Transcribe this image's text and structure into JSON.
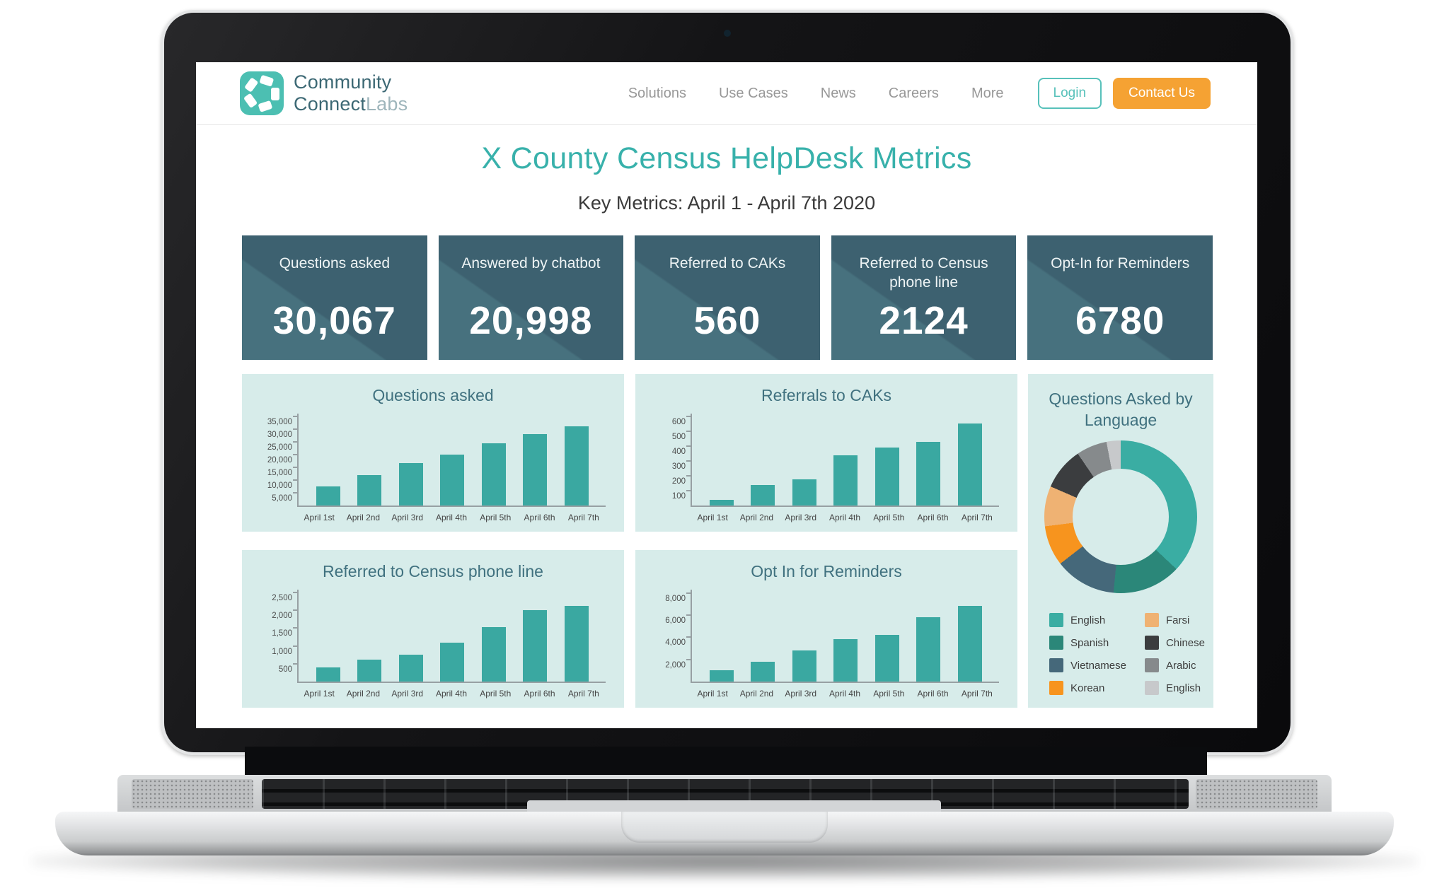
{
  "header": {
    "logo": {
      "line1": "Community",
      "line2_bold": "Connect",
      "line2_light": "Labs"
    },
    "nav": [
      "Solutions",
      "Use Cases",
      "News",
      "Careers",
      "More"
    ],
    "login_label": "Login",
    "contact_label": "Contact Us"
  },
  "title": "X County Census HelpDesk Metrics",
  "subtitle": "Key Metrics: April 1 - April 7th 2020",
  "kpis": [
    {
      "label": "Questions asked",
      "value": "30,067"
    },
    {
      "label": "Answered by chatbot",
      "value": "20,998"
    },
    {
      "label": "Referred to CAKs",
      "value": "560"
    },
    {
      "label": "Referred to Census phone line",
      "value": "2124"
    },
    {
      "label": "Opt-In for Reminders",
      "value": "6780"
    }
  ],
  "colors": {
    "accent_teal": "#38b1ab",
    "accent_orange": "#f5a233",
    "kpi_card": "#3d6170",
    "panel_bg": "#d7ecea",
    "bar": "#3aa8a1",
    "chart_title": "#40717f"
  },
  "chart_data": [
    {
      "type": "bar",
      "title": "Questions asked",
      "categories": [
        "April 1st",
        "April 2nd",
        "April 3rd",
        "April 4th",
        "April 5th",
        "April 6th",
        "April 7th"
      ],
      "values": [
        7500,
        11800,
        16500,
        20000,
        24500,
        28000,
        31000
      ],
      "ylim": [
        0,
        36000
      ],
      "yticks": [
        {
          "v": 5000,
          "label": "5,000"
        },
        {
          "v": 10000,
          "label": "10,000"
        },
        {
          "v": 15000,
          "label": "15,000"
        },
        {
          "v": 20000,
          "label": "20,000"
        },
        {
          "v": 25000,
          "label": "25,000"
        },
        {
          "v": 30000,
          "label": "30,000"
        },
        {
          "v": 35000,
          "label": "35,000"
        }
      ],
      "bar_color": "#3aa8a1",
      "grid": false
    },
    {
      "type": "bar",
      "title": "Referrals to CAKs",
      "categories": [
        "April 1st",
        "April 2nd",
        "April 3rd",
        "April 4th",
        "April 5th",
        "April 6th",
        "April 7th"
      ],
      "values": [
        40,
        140,
        175,
        340,
        390,
        430,
        555
      ],
      "ylim": [
        0,
        620
      ],
      "yticks": [
        {
          "v": 100,
          "label": "100"
        },
        {
          "v": 200,
          "label": "200"
        },
        {
          "v": 300,
          "label": "300"
        },
        {
          "v": 400,
          "label": "400"
        },
        {
          "v": 500,
          "label": "500"
        },
        {
          "v": 600,
          "label": "600"
        }
      ],
      "bar_color": "#3aa8a1",
      "grid": false
    },
    {
      "type": "bar",
      "title": "Referred to Census phone line",
      "categories": [
        "April 1st",
        "April 2nd",
        "April 3rd",
        "April 4th",
        "April 5th",
        "April 6th",
        "April 7th"
      ],
      "values": [
        400,
        620,
        760,
        1100,
        1520,
        2010,
        2120
      ],
      "ylim": [
        0,
        2580
      ],
      "yticks": [
        {
          "v": 500,
          "label": "500"
        },
        {
          "v": 1000,
          "label": "1,000"
        },
        {
          "v": 1500,
          "label": "1,500"
        },
        {
          "v": 2000,
          "label": "2,000"
        },
        {
          "v": 2500,
          "label": "2,500"
        }
      ],
      "bar_color": "#3aa8a1",
      "grid": false
    },
    {
      "type": "bar",
      "title": "Opt In for Reminders",
      "categories": [
        "April 1st",
        "April 2nd",
        "April 3rd",
        "April 4th",
        "April 5th",
        "April 6th",
        "April 7th"
      ],
      "values": [
        1050,
        1800,
        2800,
        3800,
        4200,
        5800,
        6800
      ],
      "ylim": [
        0,
        8300
      ],
      "yticks": [
        {
          "v": 2000,
          "label": "2,000"
        },
        {
          "v": 4000,
          "label": "4,000"
        },
        {
          "v": 6000,
          "label": "6,000"
        },
        {
          "v": 8000,
          "label": "8,000"
        }
      ],
      "bar_color": "#3aa8a1",
      "grid": false
    },
    {
      "type": "pie",
      "title": "Questions Asked by Language",
      "legend_position": "bottom",
      "slices": [
        {
          "label": "English",
          "value": 37,
          "color": "#3aada3"
        },
        {
          "label": "Spanish",
          "value": 14.5,
          "color": "#2b8779"
        },
        {
          "label": "Vietnamese",
          "value": 13,
          "color": "#45687a"
        },
        {
          "label": "Korean",
          "value": 8.5,
          "color": "#f7941e"
        },
        {
          "label": "Farsi",
          "value": 8.5,
          "color": "#efb273"
        },
        {
          "label": "Chinese",
          "value": 9,
          "color": "#3b3d3f"
        },
        {
          "label": "Arabic",
          "value": 6.5,
          "color": "#868a8c"
        },
        {
          "label": "English",
          "value": 3,
          "color": "#c7c9cb"
        }
      ]
    }
  ]
}
